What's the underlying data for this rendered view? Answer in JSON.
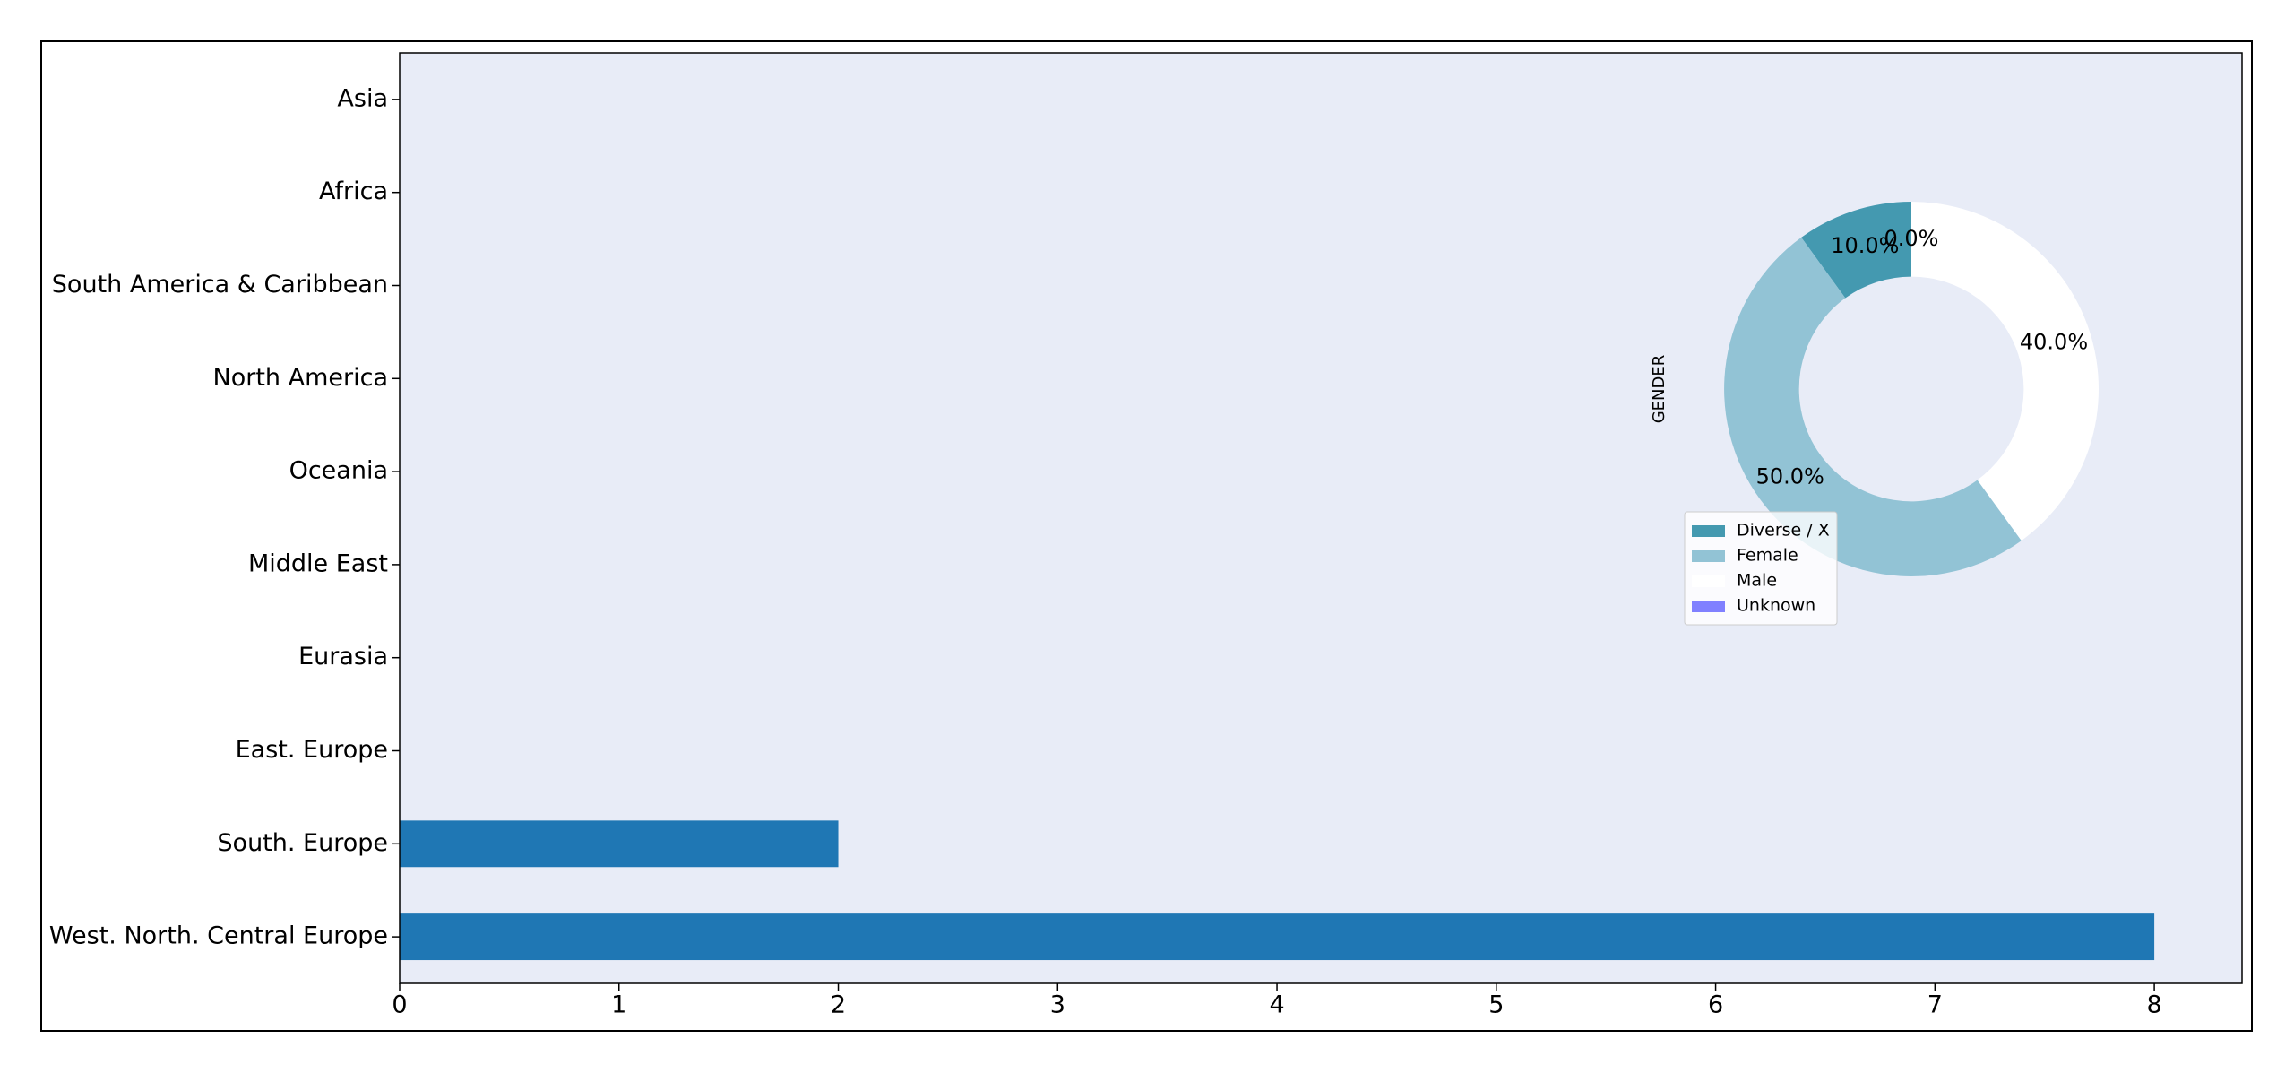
{
  "chart_data": [
    {
      "type": "barh",
      "categories": [
        "West. North. Central Europe",
        "South. Europe",
        "East. Europe",
        "Eurasia",
        "Middle East",
        "Oceania",
        "North America",
        "South America & Caribbean",
        "Africa",
        "Asia"
      ],
      "values": [
        8,
        2,
        0,
        0,
        0,
        0,
        0,
        0,
        0,
        0
      ],
      "color": "#1f77b4",
      "xlim": [
        0,
        8.4
      ],
      "xticks": [
        0,
        1,
        2,
        3,
        4,
        5,
        6,
        7,
        8
      ],
      "background": "#e8ecf7"
    },
    {
      "type": "pie",
      "donut": true,
      "ylabel": "GENDER",
      "categories": [
        "Diverse / X",
        "Female",
        "Male",
        "Unknown"
      ],
      "values": [
        10,
        50,
        40,
        0
      ],
      "value_labels": [
        "10.0%",
        "50.0%",
        "40.0%",
        "0.0%"
      ],
      "colors": [
        "#4499b0",
        "#92c3d5",
        "#ffffff",
        "#8080ff"
      ]
    }
  ]
}
